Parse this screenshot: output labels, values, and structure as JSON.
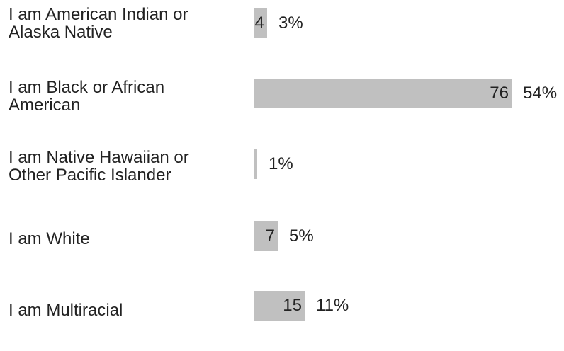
{
  "chart_data": {
    "type": "bar",
    "orientation": "horizontal",
    "categories": [
      "I am American Indian or\nAlaska Native",
      "I am Black or African\nAmerican",
      "I am Native Hawaiian or\nOther Pacific Islander",
      "I am White",
      "I am Multiracial"
    ],
    "values": [
      4,
      76,
      1,
      7,
      15
    ],
    "count_labels": [
      "4",
      "76",
      "",
      "7",
      "15"
    ],
    "percent_labels": [
      "3%",
      "54%",
      "1%",
      "5%",
      "11%"
    ],
    "percents": [
      3,
      54,
      1,
      5,
      11
    ],
    "xlim": [
      0,
      76
    ],
    "grid": false,
    "legend": "none",
    "colors": {
      "bar": "#c0c0c0",
      "text": "#222222"
    }
  }
}
